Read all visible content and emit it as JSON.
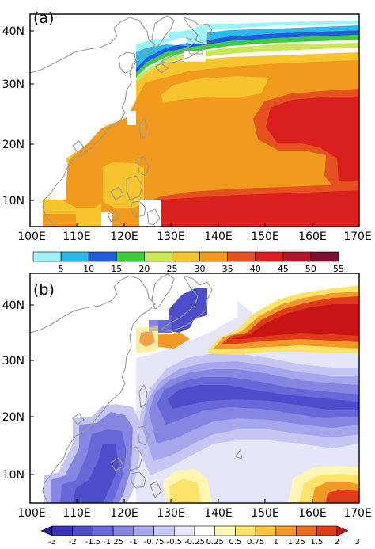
{
  "panels": [
    {
      "id": "a",
      "label": "(a)",
      "lat_labels": [
        "40N",
        "30N",
        "20N",
        "10N"
      ],
      "lon_labels": [
        "100E",
        "110E",
        "120E",
        "130E",
        "140E",
        "150E",
        "160E",
        "170E"
      ],
      "colorbar": {
        "colors": [
          "#9ef2fa",
          "#2bb8ea",
          "#1e5fd9",
          "#3ccc3c",
          "#cbe65a",
          "#f6c52e",
          "#f29a1c",
          "#e6521f",
          "#d9201e",
          "#b01528",
          "#7f0d2f"
        ],
        "labels": [
          "5",
          "10",
          "15",
          "20",
          "25",
          "30",
          "35",
          "40",
          "45",
          "50",
          "55"
        ]
      }
    },
    {
      "id": "b",
      "label": "(b)",
      "lat_labels": [
        "40N",
        "30N",
        "20N",
        "10N"
      ],
      "lon_labels": [
        "100E",
        "110E",
        "120E",
        "130E",
        "140E",
        "150E",
        "160E",
        "170E"
      ],
      "colorbar": {
        "colors": [
          "#2b1a9a",
          "#3a33b8",
          "#4d4dcc",
          "#6868d8",
          "#8686e2",
          "#a6a6ec",
          "#c6c6f4",
          "#e6e6fa",
          "#ffffff",
          "#fff6b4",
          "#fde36a",
          "#f9c33a",
          "#f39a26",
          "#ea6a1e",
          "#df3a1a",
          "#c81414"
        ],
        "labels": [
          "-3",
          "-2",
          "-1.5",
          "-1.25",
          "-1",
          "-0.75",
          "-0.5",
          "-0.25",
          "0.25",
          "0.5",
          "0.75",
          "1",
          "1.25",
          "1.5",
          "2",
          "3"
        ]
      }
    }
  ]
}
